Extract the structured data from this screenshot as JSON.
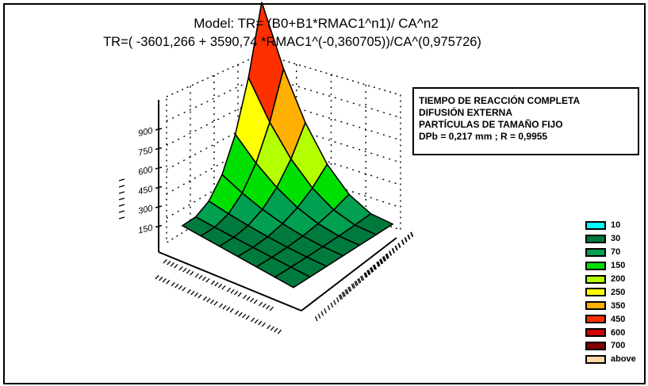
{
  "chart": {
    "title_line1": "Model: TR= (B0+B1*RMAC1^n1)/ CA^n2",
    "title_line2": "TR=( -3601,266 + 3590,74 *RMAC1^(-0,360705))/CA^(0,975726)",
    "info_lines": [
      "TIEMPO DE REACCIÓN COMPLETA",
      "DIFUSIÓN EXTERNA",
      "PARTÍCULAS DE TAMAÑO FIJO",
      "DPb = 0,217 mm ;   R = 0,9955"
    ]
  },
  "chart_data": {
    "type": "surface3d",
    "title": "Model: TR= (B0+B1*RMAC1^n1)/ CA^n2",
    "subtitle": "TR=( -3601,266 + 3590,74 *RMAC1^(-0,360705))/CA^(0,975726)",
    "z_ticks": [
      "900",
      "750",
      "600",
      "450",
      "300",
      "150"
    ],
    "legend": [
      {
        "label": "10",
        "color": "#00ffff"
      },
      {
        "label": "30",
        "color": "#007a3c"
      },
      {
        "label": "70",
        "color": "#00a050"
      },
      {
        "label": "150",
        "color": "#00e000"
      },
      {
        "label": "200",
        "color": "#b4ff00"
      },
      {
        "label": "250",
        "color": "#ffff00"
      },
      {
        "label": "350",
        "color": "#ffb000"
      },
      {
        "label": "450",
        "color": "#ff3000"
      },
      {
        "label": "600",
        "color": "#d00000"
      },
      {
        "label": "700",
        "color": "#800000"
      },
      {
        "label": "above",
        "color": "#ffd8a8"
      }
    ]
  }
}
